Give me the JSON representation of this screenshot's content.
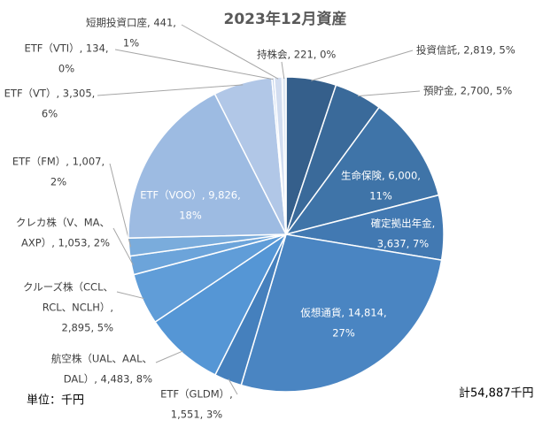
{
  "chart_data": {
    "type": "pie",
    "title": "2023年12月資産",
    "categories": [
      "投資信託",
      "預貯金",
      "生命保険",
      "確定拠出年金",
      "仮想通貨",
      "ETF（GLDM）",
      "航空株（UAL、AAL、DAL）",
      "クルーズ株（CCL、RCL、NCLH）",
      "クレカ株（V、MA、AXP）",
      "ETF（FM）",
      "ETF（VOO）",
      "ETF（VT）",
      "ETF（VTI）",
      "短期投資口座",
      "持株会"
    ],
    "values": [
      2819,
      2700,
      6000,
      3637,
      14814,
      1551,
      4483,
      2895,
      1053,
      1007,
      9826,
      3305,
      134,
      441,
      221
    ],
    "data_labels": [
      [
        "投資信託, 2,819, 5%"
      ],
      [
        "預貯金, 2,700, 5%"
      ],
      [
        "生命保険, 6,000,",
        "11%"
      ],
      [
        "確定拠出年金,",
        "3,637, 7%"
      ],
      [
        "仮想通貨, 14,814,",
        "27%"
      ],
      [
        "ETF（GLDM）,",
        "1,551, 3%"
      ],
      [
        "航空株（UAL、AAL、",
        "DAL）, 4,483, 8%"
      ],
      [
        "クルーズ株（CCL、",
        "RCL、NCLH）,",
        "2,895, 5%"
      ],
      [
        "クレカ株（V、MA、",
        "AXP）, 1,053, 2%"
      ],
      [
        "ETF（FM）, 1,007,",
        "2%"
      ],
      [
        "ETF（VOO）, 9,826,",
        "18%"
      ],
      [
        "ETF（VT）, 3,305,",
        "6%"
      ],
      [
        "ETF（VTI）, 134,",
        "0%"
      ],
      [
        "短期投資口座, 441,",
        "1%"
      ],
      [
        "持株会, 221, 0%"
      ]
    ],
    "colors": [
      "#355f8b",
      "#3a6a9a",
      "#3f74a8",
      "#4279b2",
      "#4a85c2",
      "#4580bd",
      "#5596d5",
      "#609dd8",
      "#6ca4da",
      "#7aacdc",
      "#9dbbe2",
      "#b1c7e7",
      "#c5d5ed",
      "#d2ddf0",
      "#dfe8f4"
    ],
    "unit_note": "単位：千円",
    "total_note": "計54,887千円"
  }
}
